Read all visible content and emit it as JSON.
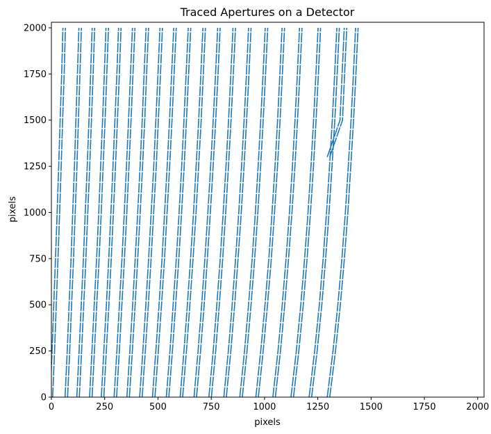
{
  "chart_data": {
    "type": "line",
    "title": "Traced Apertures on a Detector",
    "xlabel": "pixels",
    "ylabel": "pixels",
    "xlim": [
      0,
      2030
    ],
    "ylim": [
      0,
      2030
    ],
    "x_ticks": [
      0,
      250,
      500,
      750,
      1000,
      1250,
      1500,
      1750,
      2000
    ],
    "y_ticks": [
      0,
      250,
      500,
      750,
      1000,
      1250,
      1500,
      1750,
      2000
    ],
    "grid": false,
    "legend": "none",
    "line_color": "#1f77b4",
    "y_samples": [
      0,
      250,
      500,
      750,
      1000,
      1250,
      1500,
      1750,
      2000
    ],
    "series": [
      {
        "values": [
          0,
          9,
          17,
          25,
          33,
          40,
          47,
          54,
          60
        ]
      },
      {
        "values": [
          1300,
          1310,
          1320,
          1330,
          1340,
          1350,
          1360,
          1370,
          1380
        ]
      },
      {
        "values": [
          70,
          80,
          89,
          98,
          106,
          114,
          121,
          128,
          135
        ]
      },
      {
        "values": [
          125,
          136,
          146,
          156,
          165,
          174,
          182,
          190,
          197
        ]
      },
      {
        "values": [
          185,
          196,
          207,
          218,
          228,
          237,
          246,
          254,
          262
        ]
      },
      {
        "values": [
          240,
          252,
          264,
          275,
          285,
          295,
          304,
          313,
          321
        ]
      },
      {
        "values": [
          300,
          313,
          325,
          337,
          348,
          358,
          368,
          377,
          386
        ]
      },
      {
        "values": [
          360,
          374,
          387,
          399,
          411,
          422,
          432,
          441,
          450
        ]
      },
      {
        "values": [
          420,
          435,
          449,
          462,
          474,
          486,
          496,
          506,
          515
        ]
      },
      {
        "values": [
          480,
          496,
          511,
          525,
          537,
          549,
          560,
          570,
          580
        ]
      },
      {
        "values": [
          545,
          562,
          577,
          592,
          605,
          617,
          628,
          638,
          648
        ]
      },
      {
        "values": [
          610,
          628,
          644,
          659,
          673,
          685,
          697,
          707,
          717
        ]
      },
      {
        "values": [
          675,
          694,
          711,
          726,
          740,
          753,
          765,
          776,
          786
        ]
      },
      {
        "values": [
          745,
          765,
          782,
          798,
          812,
          825,
          837,
          848,
          858
        ]
      },
      {
        "values": [
          815,
          836,
          854,
          870,
          885,
          898,
          910,
          921,
          931
        ]
      },
      {
        "values": [
          890,
          912,
          931,
          948,
          963,
          976,
          988,
          999,
          1009
        ]
      },
      {
        "values": [
          965,
          988,
          1008,
          1026,
          1041,
          1055,
          1067,
          1078,
          1088
        ]
      },
      {
        "values": [
          1045,
          1069,
          1089,
          1107,
          1123,
          1137,
          1149,
          1160,
          1170
        ]
      },
      {
        "values": [
          1130,
          1155,
          1176,
          1194,
          1210,
          1224,
          1236,
          1247,
          1257
        ]
      },
      {
        "values": [
          1215,
          1241,
          1263,
          1281,
          1297,
          1311,
          1324,
          1335,
          1345
        ]
      },
      {
        "values": [
          1300,
          1327,
          1350,
          1369,
          1385,
          1399,
          1412,
          1423,
          1433
        ]
      }
    ]
  }
}
